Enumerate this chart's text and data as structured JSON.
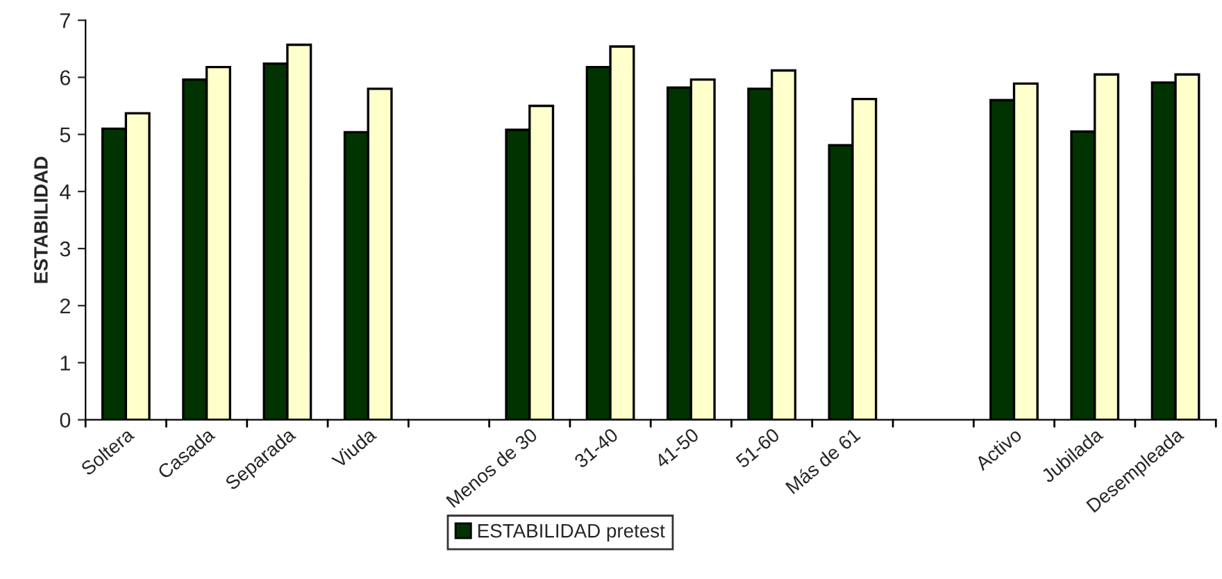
{
  "chart_data": {
    "type": "bar",
    "ylabel": "ESTABILIDAD",
    "categories": [
      "Soltera",
      "Casada",
      "Separada",
      "Viuda",
      null,
      "Menos de 30",
      "31-40",
      "41-50",
      "51-60",
      "Más de 61",
      null,
      "Activo",
      "Jubilada",
      "Desempleada"
    ],
    "series": [
      {
        "name": "ESTABILIDAD pretest",
        "color": "#003300",
        "values": [
          5.1,
          5.96,
          6.24,
          5.04,
          null,
          5.08,
          6.18,
          5.82,
          5.8,
          4.81,
          null,
          5.6,
          5.05,
          5.91
        ]
      },
      {
        "color": "#ffffcc",
        "values": [
          5.37,
          6.18,
          6.57,
          5.8,
          null,
          5.5,
          6.54,
          5.96,
          6.12,
          5.62,
          null,
          5.89,
          6.05,
          6.05
        ]
      }
    ],
    "ylim": [
      0,
      7
    ],
    "yticks": [
      0,
      1,
      2,
      3,
      4,
      5,
      6,
      7
    ],
    "grid": false,
    "legend": "bottom"
  }
}
